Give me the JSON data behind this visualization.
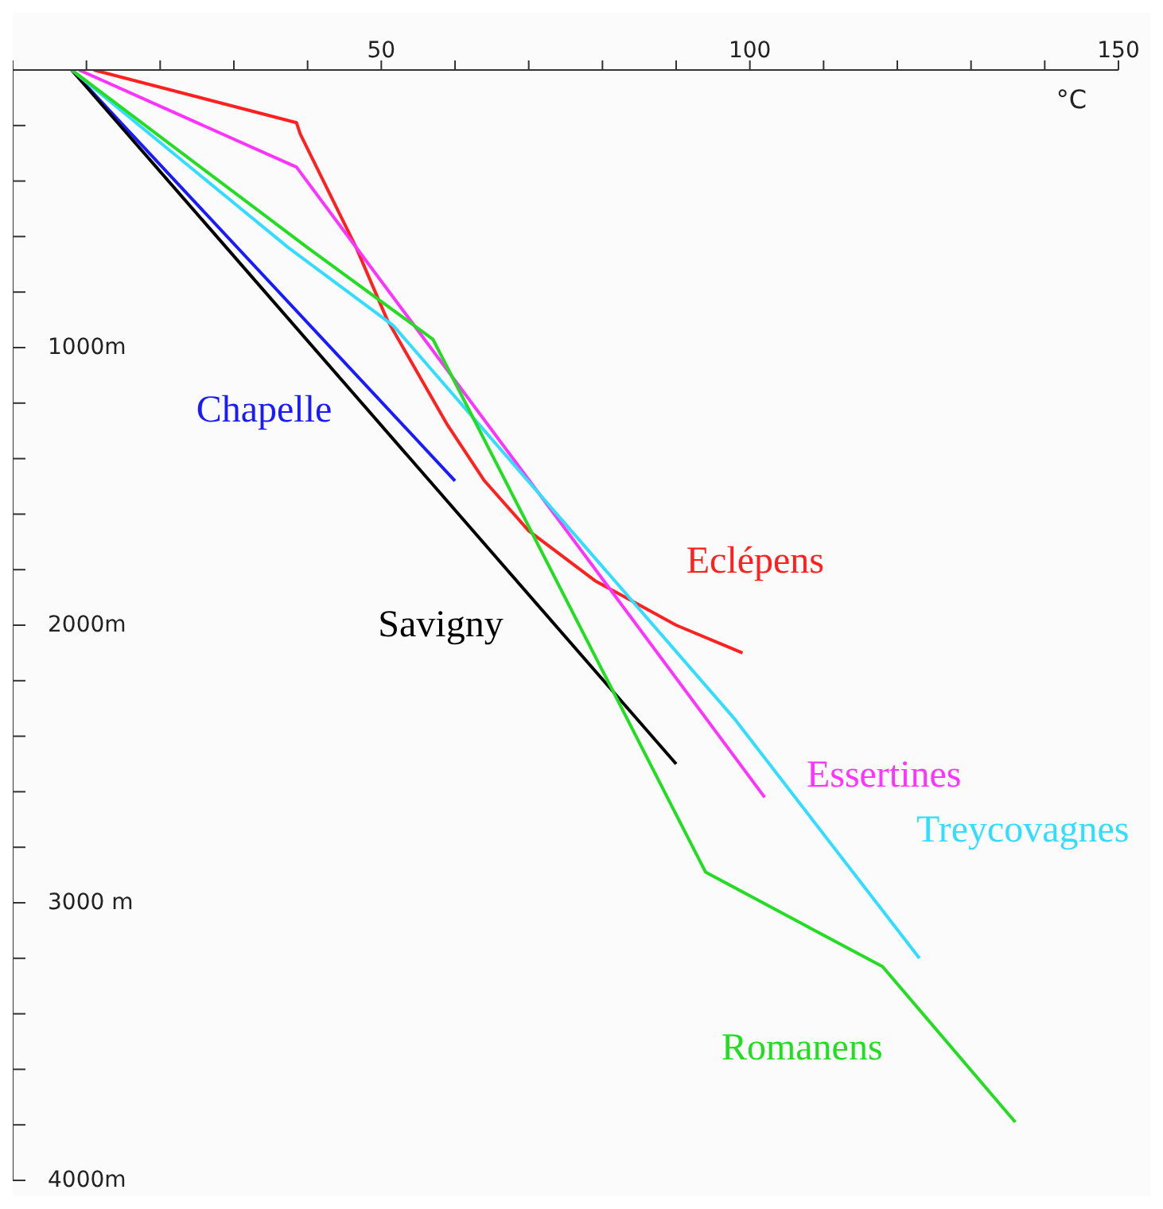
{
  "chart_data": {
    "type": "line",
    "xlabel": "°C",
    "xlim": [
      0,
      150
    ],
    "xticks": [
      {
        "value": 0,
        "label": null
      },
      {
        "value": 10,
        "label": null
      },
      {
        "value": 20,
        "label": null
      },
      {
        "value": 30,
        "label": null
      },
      {
        "value": 40,
        "label": null
      },
      50,
      {
        "value": 60,
        "label": null
      },
      {
        "value": 70,
        "label": null
      },
      {
        "value": 80,
        "label": null
      },
      {
        "value": 90,
        "label": null
      },
      100,
      {
        "value": 110,
        "label": null
      },
      {
        "value": 120,
        "label": null
      },
      {
        "value": 130,
        "label": null
      },
      {
        "value": 140,
        "label": null
      },
      150
    ],
    "ylim": [
      4000,
      0
    ],
    "yticks": [
      {
        "value": 0,
        "label": null
      },
      {
        "value": 200,
        "label": null
      },
      {
        "value": 400,
        "label": null
      },
      {
        "value": 600,
        "label": null
      },
      {
        "value": 800,
        "label": null
      },
      {
        "value": 1000,
        "label": "1000m"
      },
      {
        "value": 1200,
        "label": null
      },
      {
        "value": 1400,
        "label": null
      },
      {
        "value": 1600,
        "label": null
      },
      {
        "value": 1800,
        "label": null
      },
      {
        "value": 2000,
        "label": "2000m"
      },
      {
        "value": 2200,
        "label": null
      },
      {
        "value": 2400,
        "label": null
      },
      {
        "value": 2600,
        "label": null
      },
      {
        "value": 2800,
        "label": null
      },
      {
        "value": 3000,
        "label": "3000 m"
      },
      {
        "value": 3200,
        "label": null
      },
      {
        "value": 3400,
        "label": null
      },
      {
        "value": 3600,
        "label": null
      },
      {
        "value": 3800,
        "label": null
      },
      {
        "value": 4000,
        "label": "4000m"
      }
    ],
    "grid": false,
    "legend": false,
    "marker": "none",
    "line_style": "solid",
    "series": [
      {
        "name": "Chapelle",
        "color": "#1a1aff",
        "x": [
          8,
          60
        ],
        "values": [
          0,
          1480
        ]
      },
      {
        "name": "Savigny",
        "color": "#000000",
        "x": [
          8,
          90
        ],
        "values": [
          0,
          2500
        ]
      },
      {
        "name": "Eclépens",
        "color": "#ff2020",
        "x": [
          11,
          38.5,
          39,
          46.6,
          50.8,
          59,
          64,
          70,
          79,
          90,
          99
        ],
        "values": [
          0,
          190,
          230,
          640,
          900,
          1280,
          1480,
          1660,
          1840,
          2000,
          2100
        ]
      },
      {
        "name": "Essertines",
        "color": "#ff33ff",
        "x": [
          9,
          38.5,
          102
        ],
        "values": [
          0,
          350,
          2620
        ]
      },
      {
        "name": "Treycovagnes",
        "color": "#33ddff",
        "x": [
          8,
          37.4,
          51.6,
          98,
          123
        ],
        "values": [
          0,
          640,
          920,
          2340,
          3200
        ]
      },
      {
        "name": "Romanens",
        "color": "#22dd22",
        "x": [
          8,
          40,
          57,
          94,
          118,
          136
        ],
        "values": [
          0,
          640,
          970,
          2890,
          3230,
          3790
        ]
      }
    ]
  }
}
